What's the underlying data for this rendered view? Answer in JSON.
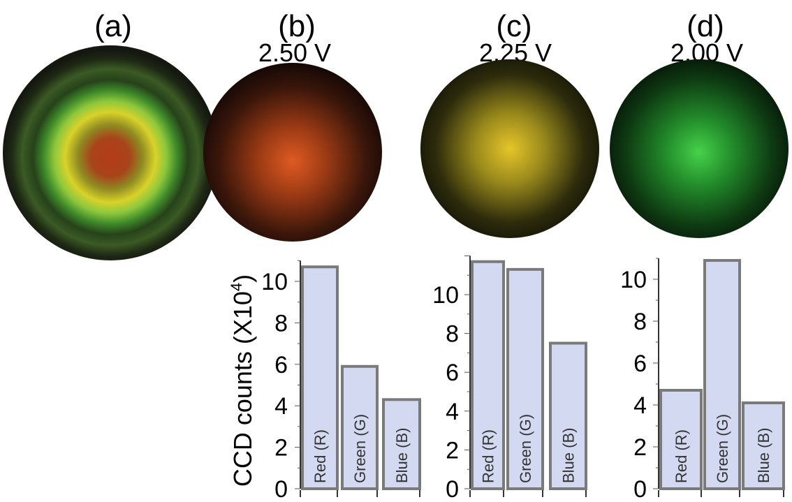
{
  "panels": [
    {
      "label": "(a)",
      "voltage": ""
    },
    {
      "label": "(b)",
      "voltage": "2.50 V"
    },
    {
      "label": "(c)",
      "voltage": "2.25 V"
    },
    {
      "label": "(d)",
      "voltage": "2.00 V"
    }
  ],
  "colors": {
    "bar_fill": "#d3d9f1",
    "bar_stroke": "#7a7a7a",
    "spot_b_core": "#e05a22",
    "spot_c_core": "#e6c52a",
    "spot_d_core": "#46d24a"
  },
  "chart_data": [
    {
      "type": "bar",
      "panel": "(b)",
      "title": "2.50 V",
      "categories": [
        "Red (R)",
        "Green (G)",
        "Blue (B)"
      ],
      "values": [
        10.7,
        5.9,
        4.3
      ],
      "ylabel_main": "CCD counts (X10",
      "ylabel_exp": "4",
      "ylabel_close": ")",
      "ylim": [
        0,
        11
      ],
      "yticks": [
        "0",
        "2",
        "4",
        "6",
        "8",
        "10"
      ]
    },
    {
      "type": "bar",
      "panel": "(c)",
      "title": "2.25 V",
      "categories": [
        "Red (R)",
        "Green (G)",
        "Blue (B)"
      ],
      "values": [
        11.7,
        11.3,
        7.5
      ],
      "ylim": [
        0,
        12
      ],
      "yticks": [
        "0",
        "2",
        "4",
        "6",
        "8",
        "10"
      ]
    },
    {
      "type": "bar",
      "panel": "(d)",
      "title": "2.00 V",
      "categories": [
        "Red (R)",
        "Green (G)",
        "Blue (B)"
      ],
      "values": [
        4.7,
        10.9,
        4.1
      ],
      "ylim": [
        0,
        11
      ],
      "yticks": [
        "0",
        "2",
        "4",
        "6",
        "8",
        "10"
      ]
    }
  ]
}
